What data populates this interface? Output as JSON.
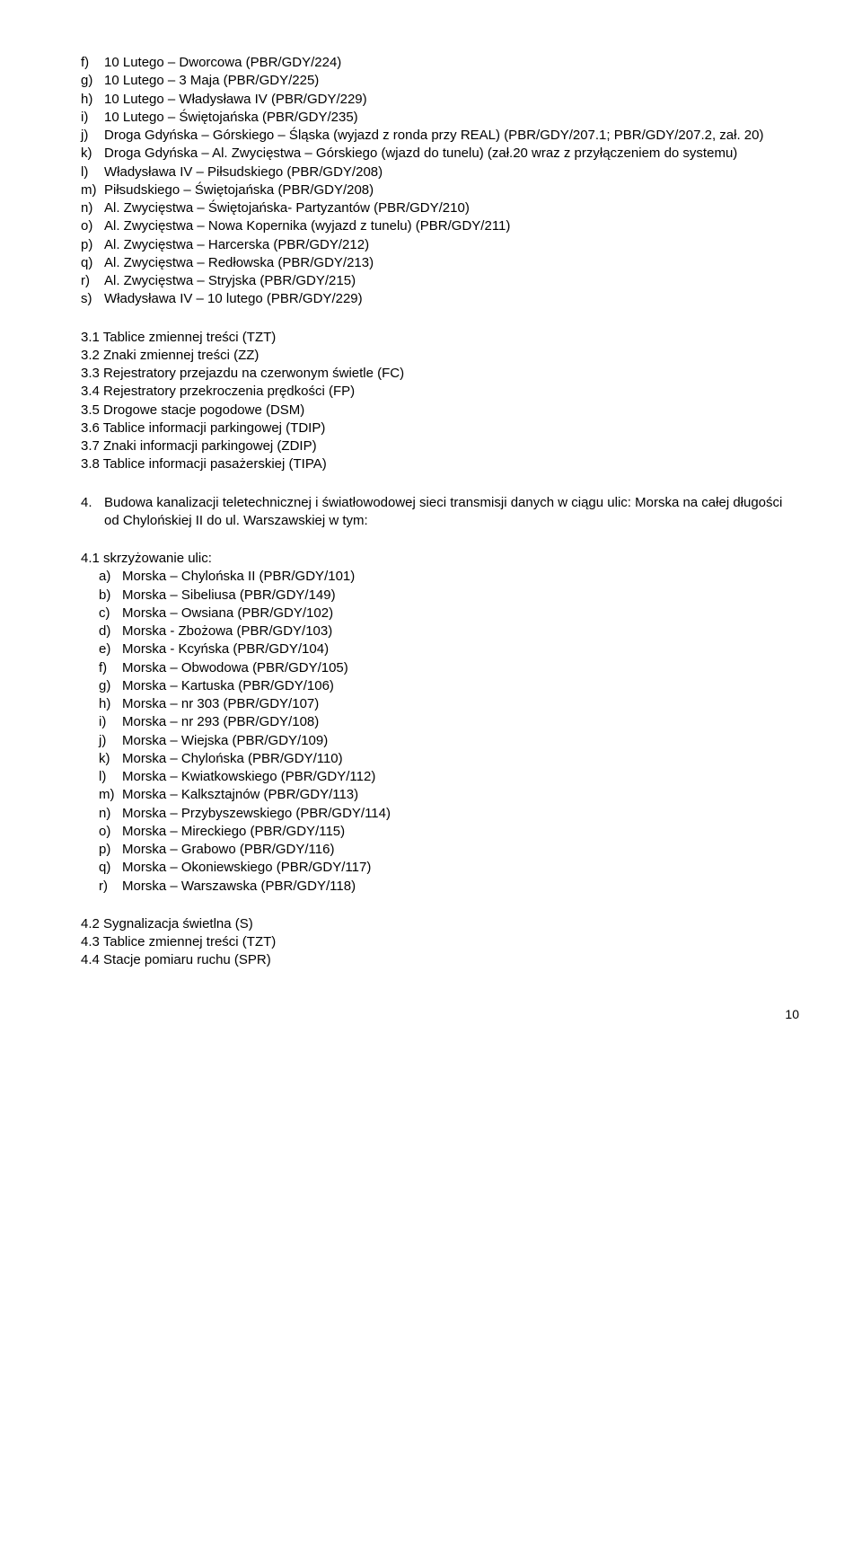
{
  "topList": [
    {
      "m": "f)",
      "t": "10 Lutego – Dworcowa (PBR/GDY/224)"
    },
    {
      "m": "g)",
      "t": "10 Lutego – 3 Maja (PBR/GDY/225)"
    },
    {
      "m": "h)",
      "t": "10 Lutego – Władysława IV (PBR/GDY/229)"
    },
    {
      "m": "i)",
      "t": "10 Lutego – Świętojańska (PBR/GDY/235)"
    },
    {
      "m": "j)",
      "t": "Droga Gdyńska – Górskiego – Śląska (wyjazd z ronda przy REAL) (PBR/GDY/207.1; PBR/GDY/207.2, zał. 20)"
    },
    {
      "m": "k)",
      "t": "Droga Gdyńska – Al. Zwycięstwa – Górskiego (wjazd do tunelu) (zał.20 wraz z przyłączeniem do systemu)"
    },
    {
      "m": "l)",
      "t": "Władysława IV – Piłsudskiego (PBR/GDY/208)"
    },
    {
      "m": "m)",
      "t": "Piłsudskiego – Świętojańska (PBR/GDY/208)"
    },
    {
      "m": "n)",
      "t": "Al. Zwycięstwa – Świętojańska- Partyzantów (PBR/GDY/210)"
    },
    {
      "m": "o)",
      "t": "Al. Zwycięstwa – Nowa Kopernika (wyjazd z tunelu) (PBR/GDY/211)"
    },
    {
      "m": "p)",
      "t": "Al. Zwycięstwa – Harcerska (PBR/GDY/212)"
    },
    {
      "m": "q)",
      "t": "Al. Zwycięstwa – Redłowska (PBR/GDY/213)"
    },
    {
      "m": "r)",
      "t": "Al. Zwycięstwa – Stryjska (PBR/GDY/215)"
    },
    {
      "m": "s)",
      "t": "Władysława IV – 10 lutego (PBR/GDY/229)"
    }
  ],
  "section3": [
    "3.1 Tablice zmiennej treści (TZT)",
    "3.2 Znaki zmiennej treści (ZZ)",
    "3.3 Rejestratory przejazdu na czerwonym świetle (FC)",
    "3.4 Rejestratory przekroczenia prędkości (FP)",
    "3.5 Drogowe stacje pogodowe (DSM)",
    "3.6 Tablice informacji parkingowej (TDIP)",
    "3.7 Znaki informacji parkingowej (ZDIP)",
    "3.8 Tablice informacji pasażerskiej (TIPA)"
  ],
  "section4": {
    "marker": "4.",
    "text": "Budowa kanalizacji teletechnicznej i światłowodowej sieci transmisji danych w ciągu ulic: Morska na całej długości  od Chylońskiej II do ul. Warszawskiej w tym:"
  },
  "sub41": {
    "header": "4.1 skrzyżowanie ulic:",
    "items": [
      {
        "m": "a)",
        "t": "Morska – Chylońska II (PBR/GDY/101)"
      },
      {
        "m": "b)",
        "t": "Morska – Sibeliusa (PBR/GDY/149)"
      },
      {
        "m": "c)",
        "t": "Morska – Owsiana (PBR/GDY/102)"
      },
      {
        "m": "d)",
        "t": "Morska -  Zbożowa (PBR/GDY/103)"
      },
      {
        "m": "e)",
        "t": "Morska - Kcyńska (PBR/GDY/104)"
      },
      {
        "m": "f)",
        "t": "Morska – Obwodowa (PBR/GDY/105)"
      },
      {
        "m": "g)",
        "t": "Morska – Kartuska (PBR/GDY/106)"
      },
      {
        "m": "h)",
        "t": "Morska – nr 303 (PBR/GDY/107)"
      },
      {
        "m": "i)",
        "t": "Morska – nr 293 (PBR/GDY/108)"
      },
      {
        "m": "j)",
        "t": "Morska – Wiejska (PBR/GDY/109)"
      },
      {
        "m": "k)",
        "t": "Morska – Chylońska (PBR/GDY/110)"
      },
      {
        "m": "l)",
        "t": "Morska – Kwiatkowskiego (PBR/GDY/112)"
      },
      {
        "m": "m)",
        "t": "Morska – Kalksztajnów (PBR/GDY/113)"
      },
      {
        "m": "n)",
        "t": "Morska – Przybyszewskiego (PBR/GDY/114)"
      },
      {
        "m": "o)",
        "t": "Morska – Mireckiego (PBR/GDY/115)"
      },
      {
        "m": "p)",
        "t": "Morska – Grabowo (PBR/GDY/116)"
      },
      {
        "m": "q)",
        "t": "Morska – Okoniewskiego (PBR/GDY/117)"
      },
      {
        "m": "r)",
        "t": "Morska – Warszawska (PBR/GDY/118)"
      }
    ]
  },
  "sub42": [
    "4.2 Sygnalizacja świetlna (S)",
    "4.3 Tablice zmiennej treści (TZT)",
    "4.4 Stacje pomiaru ruchu  (SPR)"
  ],
  "pageNumber": "10"
}
